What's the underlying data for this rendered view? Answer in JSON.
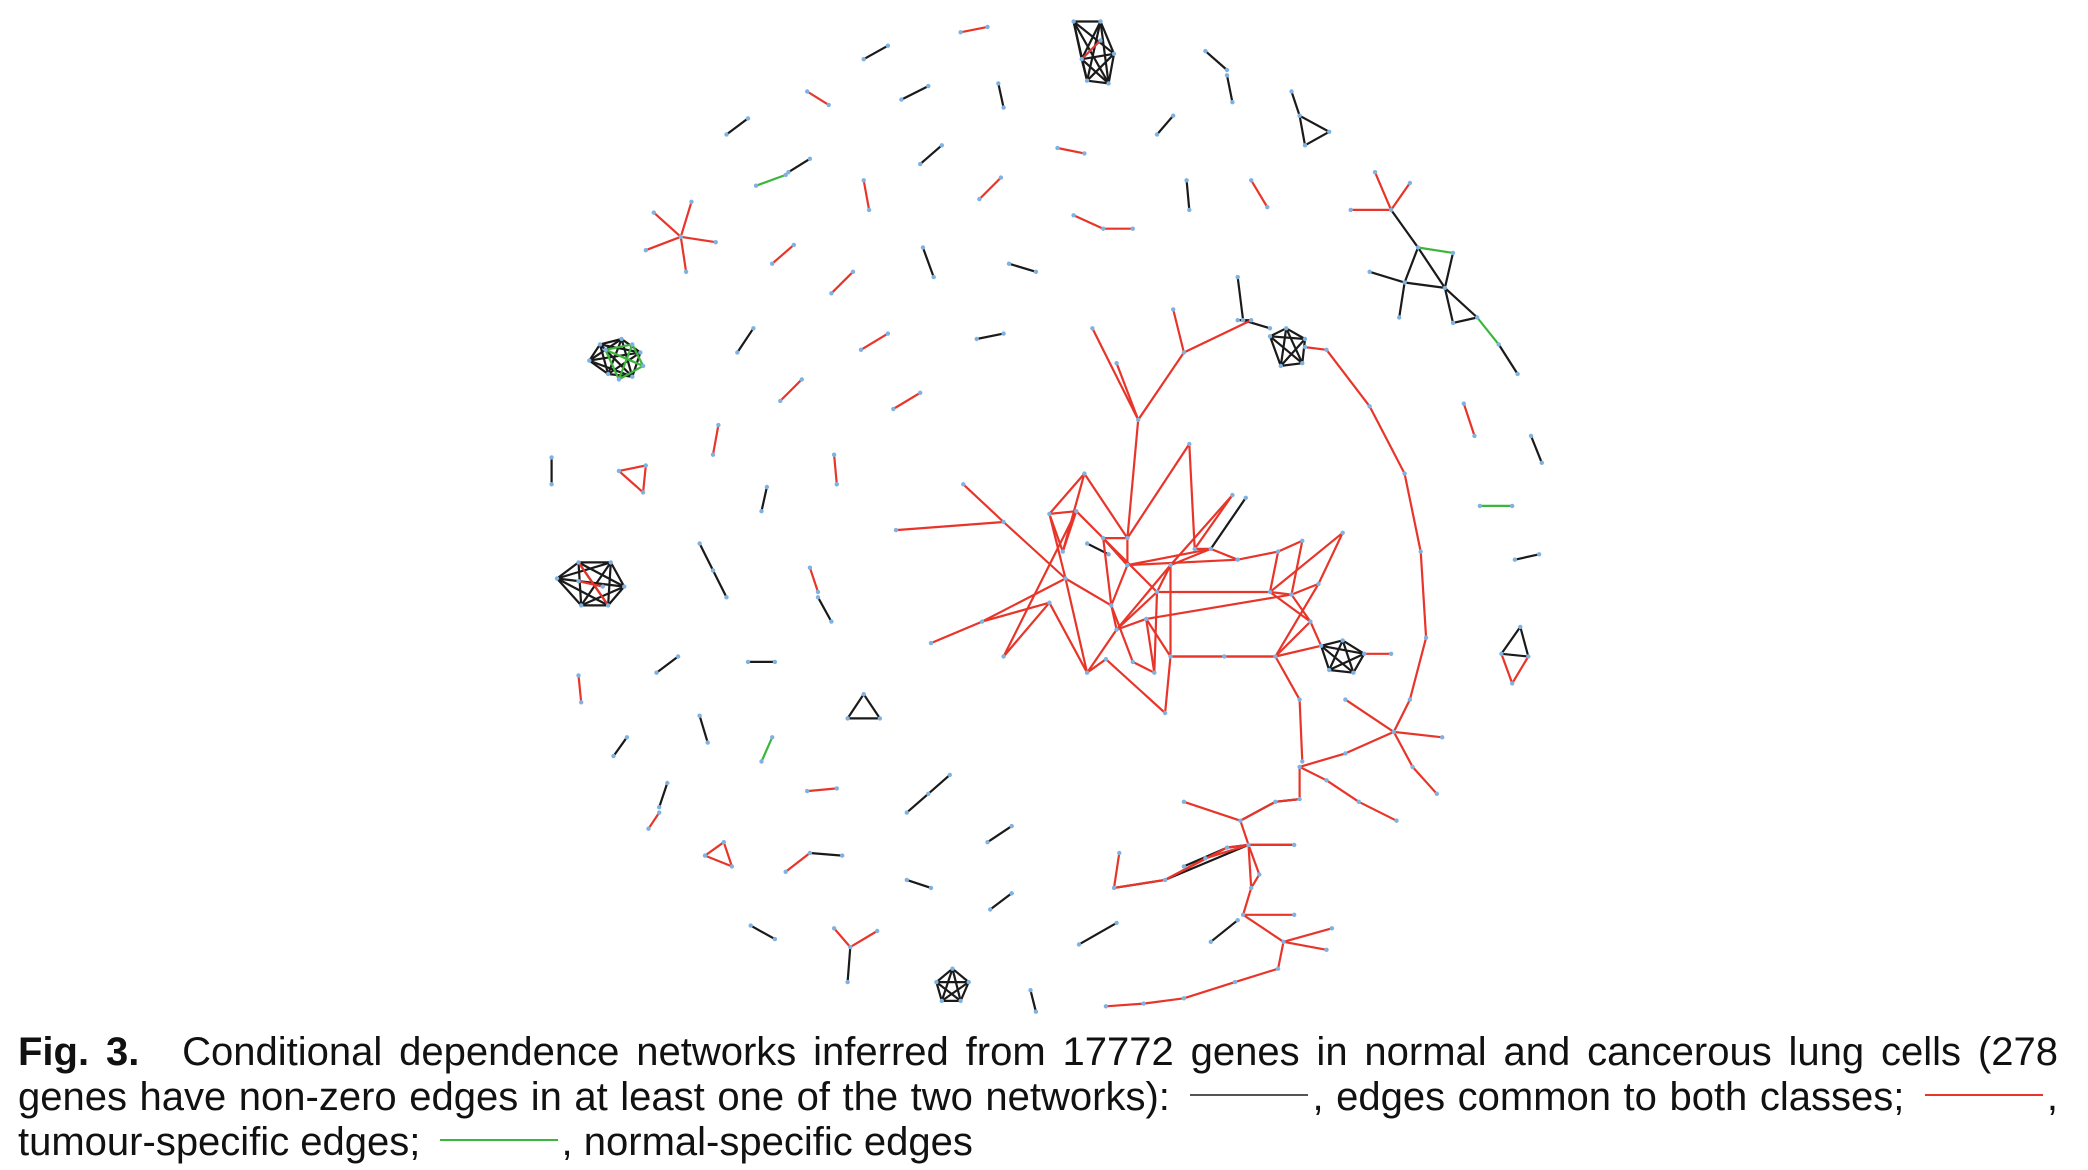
{
  "figure": {
    "colors": {
      "common": "#1a1a1a",
      "tumour": "#e8352a",
      "normal": "#3cb53c",
      "node": "#7fb2e0"
    }
  },
  "caption": {
    "label": "Fig. 3.",
    "text_a": "Conditional dependence networks inferred from 17772 genes in normal and cancerous lung cells (278 genes have non-zero edges in at least one of the two networks):",
    "legend_common": ", edges common to both classes;",
    "legend_tumour": ", tumour-specific edges;",
    "legend_normal": ", normal-specific edges"
  }
}
